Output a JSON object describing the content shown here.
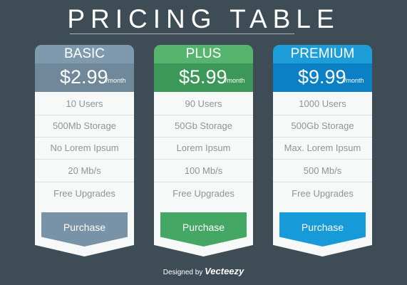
{
  "title": "PRICING TABLE",
  "plans": [
    {
      "name": "BASIC",
      "price": "$2.99",
      "period": "/month",
      "features": [
        "10 Users",
        "500Mb Storage",
        "No Lorem Ipsum",
        "20 Mb/s",
        "Free Upgrades"
      ],
      "button": "Purchase",
      "colors": {
        "head": "#7f9aae",
        "price": "#6f889a",
        "button": "#7893a7"
      }
    },
    {
      "name": "PLUS",
      "price": "$5.99",
      "period": "/month",
      "features": [
        "90 Users",
        "50Gb Storage",
        "Lorem Ipsum",
        "100 Mb/s",
        "Free Upgrades"
      ],
      "button": "Purchase",
      "colors": {
        "head": "#55b56e",
        "price": "#3c9858",
        "button": "#45a764"
      }
    },
    {
      "name": "PREMIUM",
      "price": "$9.99",
      "period": "/month",
      "features": [
        "1000 Users",
        "500Gb Storage",
        "Max. Lorem Ipsum",
        "500 Mb/s",
        "Free Upgrades"
      ],
      "button": "Purchase",
      "colors": {
        "head": "#1e9ed9",
        "price": "#0b80c4",
        "button": "#169ad8"
      }
    }
  ],
  "credit": {
    "prefix": "Designed by",
    "brand": "Vecteezy"
  }
}
